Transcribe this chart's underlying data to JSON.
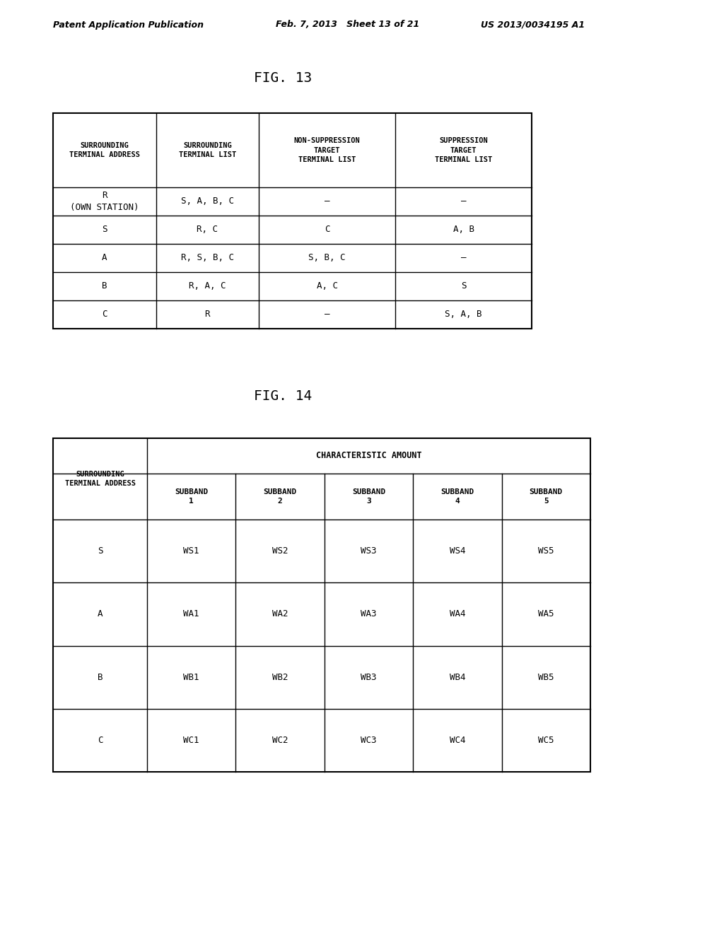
{
  "header_text_left": "Patent Application Publication",
  "header_text_mid": "Feb. 7, 2013   Sheet 13 of 21",
  "header_text_right": "US 2013/0034195 A1",
  "fig13_title": "FIG. 13",
  "fig14_title": "FIG. 14",
  "table1": {
    "col_headers": [
      "SURROUNDING\nTERMINAL ADDRESS",
      "SURROUNDING\nTERMINAL LIST",
      "NON-SUPPRESSION\nTARGET\nTERMINAL LIST",
      "SUPPRESSION\nTARGET\nTERMINAL LIST"
    ],
    "rows": [
      [
        "R\n(OWN STATION)",
        "S, A, B, C",
        "–",
        "–"
      ],
      [
        "S",
        "R, C",
        "C",
        "A, B"
      ],
      [
        "A",
        "R, S, B, C",
        "S, B, C",
        "–"
      ],
      [
        "B",
        "R, A, C",
        "A, C",
        "S"
      ],
      [
        "C",
        "R",
        "–",
        "S, A, B"
      ]
    ]
  },
  "table2": {
    "top_header": "CHARACTERISTIC AMOUNT",
    "left_header": "SURROUNDING\nTERMINAL ADDRESS",
    "sub_headers": [
      "SUBBAND\n1",
      "SUBBAND\n2",
      "SUBBAND\n3",
      "SUBBAND\n4",
      "SUBBAND\n5"
    ],
    "rows": [
      [
        "S",
        "WS1",
        "WS2",
        "WS3",
        "WS4",
        "WS5"
      ],
      [
        "A",
        "WA1",
        "WA2",
        "WA3",
        "WA4",
        "WA5"
      ],
      [
        "B",
        "WB1",
        "WB2",
        "WB3",
        "WB4",
        "WB5"
      ],
      [
        "C",
        "WC1",
        "WC2",
        "WC3",
        "WC4",
        "WC5"
      ]
    ]
  },
  "bg_color": "#ffffff",
  "line_color": "#000000",
  "text_color": "#000000"
}
